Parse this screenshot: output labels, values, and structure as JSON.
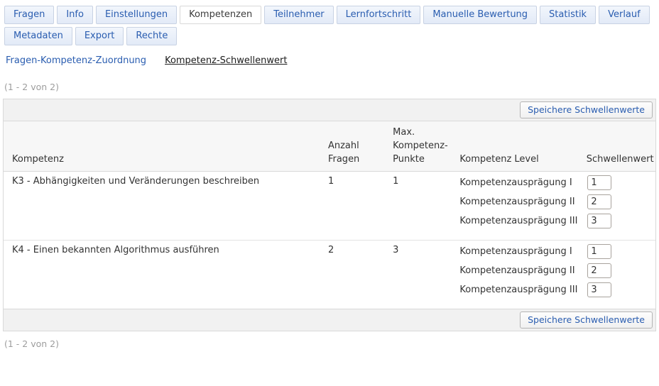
{
  "tabs": {
    "items": [
      {
        "label": "Fragen"
      },
      {
        "label": "Info"
      },
      {
        "label": "Einstellungen"
      },
      {
        "label": "Kompetenzen"
      },
      {
        "label": "Teilnehmer"
      },
      {
        "label": "Lernfortschritt"
      },
      {
        "label": "Manuelle Bewertung"
      },
      {
        "label": "Statistik"
      },
      {
        "label": "Verlauf"
      },
      {
        "label": "Metadaten"
      },
      {
        "label": "Export"
      },
      {
        "label": "Rechte"
      }
    ],
    "active": "Kompetenzen"
  },
  "subtabs": {
    "items": [
      {
        "label": "Fragen-Kompetenz-Zuordnung"
      },
      {
        "label": "Kompetenz-Schwellenwert"
      }
    ],
    "active": "Kompetenz-Schwellenwert"
  },
  "pagination": {
    "range": "(1 - 2 von 2)"
  },
  "toolbar": {
    "save_label": "Speichere Schwellenwerte"
  },
  "colors": {
    "link_blue": "#2a5db0",
    "band_gray": "#f1f1f1",
    "header_gray": "#f7f7f7",
    "border_gray": "#d9d9d9"
  },
  "table": {
    "headers": {
      "kompetenz": "Kompetenz",
      "anzahl_fragen": "Anzahl Fragen",
      "max_punkte": "Max. Kompetenz-Punkte",
      "level": "Kompetenz Level",
      "schwellenwert": "Schwellenwert"
    },
    "rows": [
      {
        "kompetenz": "K3 - Abhängigkeiten und Veränderungen beschreiben",
        "anzahl_fragen": "1",
        "max_punkte": "1",
        "levels": [
          {
            "label": "Kompetenzausprägung I",
            "value": "1"
          },
          {
            "label": "Kompetenzausprägung II",
            "value": "2"
          },
          {
            "label": "Kompetenzausprägung III",
            "value": "3"
          }
        ]
      },
      {
        "kompetenz": "K4 - Einen bekannten Algorithmus ausführen",
        "anzahl_fragen": "2",
        "max_punkte": "3",
        "levels": [
          {
            "label": "Kompetenzausprägung I",
            "value": "1"
          },
          {
            "label": "Kompetenzausprägung II",
            "value": "2"
          },
          {
            "label": "Kompetenzausprägung III",
            "value": "3"
          }
        ]
      }
    ]
  }
}
